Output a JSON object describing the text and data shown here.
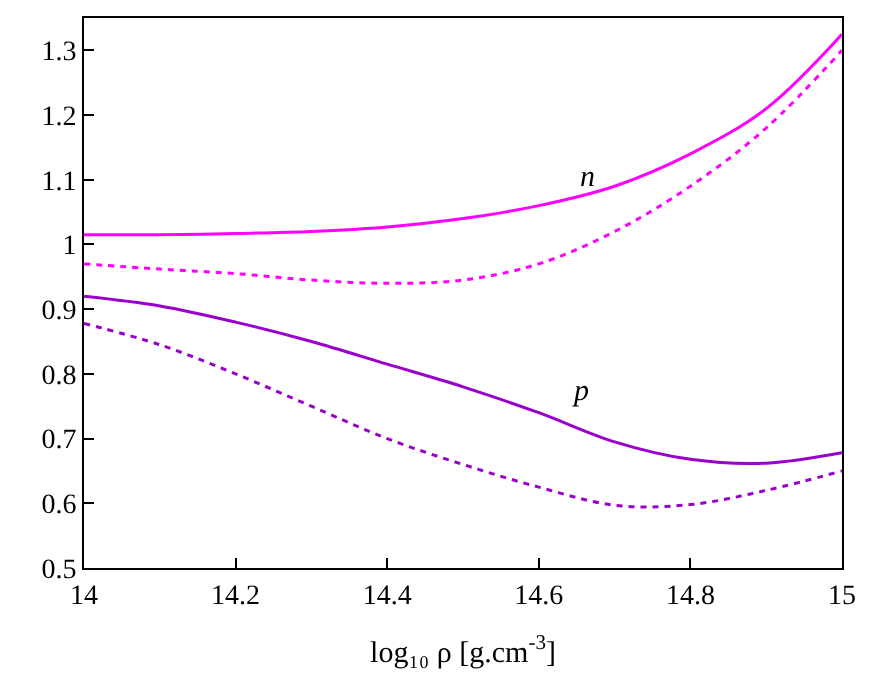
{
  "chart_data": {
    "type": "line",
    "xlabel": "log₁₀ ρ [g.cm$^{-3}$]",
    "x": [
      14.0,
      14.1,
      14.2,
      14.3,
      14.4,
      14.5,
      14.6,
      14.7,
      14.8,
      14.9,
      15.0
    ],
    "series": [
      {
        "color": "#ff00ff",
        "line_style": "solid",
        "values": [
          1.015,
          1.015,
          1.017,
          1.02,
          1.027,
          1.04,
          1.06,
          1.09,
          1.14,
          1.21,
          1.325
        ]
      },
      {
        "color": "#ff00ff",
        "line_style": "dotted",
        "values": [
          0.97,
          0.962,
          0.955,
          0.945,
          0.94,
          0.945,
          0.97,
          1.02,
          1.09,
          1.18,
          1.3
        ]
      },
      {
        "color": "#9900cc",
        "line_style": "solid",
        "values": [
          0.92,
          0.905,
          0.88,
          0.85,
          0.815,
          0.78,
          0.74,
          0.695,
          0.668,
          0.662,
          0.678
        ]
      },
      {
        "color": "#9900cc",
        "line_style": "dotted",
        "values": [
          0.878,
          0.845,
          0.8,
          0.75,
          0.7,
          0.66,
          0.625,
          0.597,
          0.598,
          0.62,
          0.65
        ]
      }
    ],
    "annotations": [
      "n",
      "p"
    ],
    "xlim": [
      14,
      15
    ],
    "xticks": [
      14,
      14.2,
      14.4,
      14.6,
      14.8,
      15
    ],
    "ylim": [
      0.5,
      1.35
    ],
    "yticks": [
      0.5,
      0.6,
      0.7,
      0.8,
      0.9,
      1,
      1.1,
      1.2,
      1.3
    ],
    "marker": "none"
  }
}
